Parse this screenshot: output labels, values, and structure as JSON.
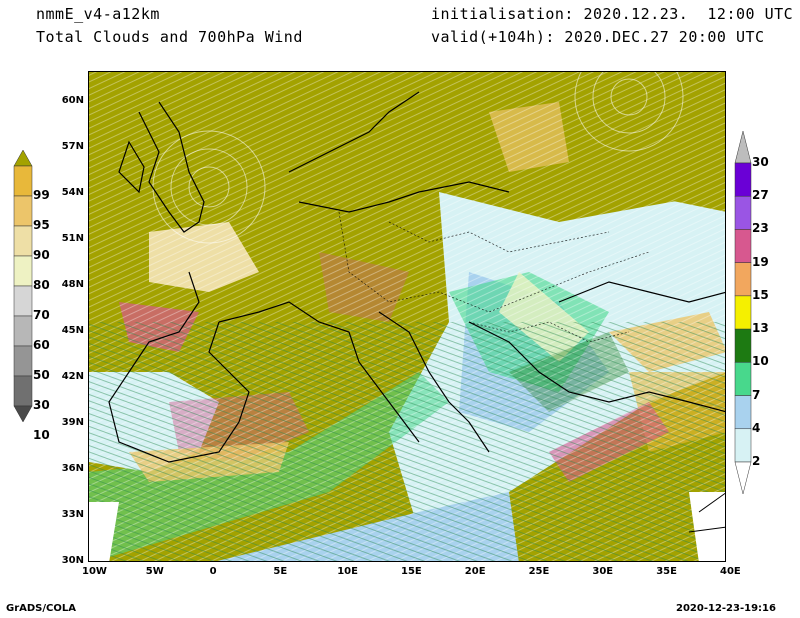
{
  "header": {
    "model": "nmmE_v4-a12km",
    "field": "Total Clouds and 700hPa Wind",
    "init": "initialisation: 2020.12.23.  12:00 UTC",
    "valid": "valid(+104h): 2020.DEC.27 20:00 UTC"
  },
  "axes": {
    "lat_labels": [
      "60N",
      "57N",
      "54N",
      "51N",
      "48N",
      "45N",
      "42N",
      "39N",
      "36N",
      "33N",
      "30N"
    ],
    "lon_labels": [
      "10W",
      "5W",
      "0",
      "5E",
      "10E",
      "15E",
      "20E",
      "25E",
      "30E",
      "35E",
      "40E"
    ]
  },
  "legend_clouds": {
    "labels": [
      "99",
      "95",
      "90",
      "80",
      "70",
      "60",
      "50",
      "30",
      "10"
    ],
    "colors": [
      "#a3a200",
      "#e8b83a",
      "#ecc56a",
      "#eedfa6",
      "#eef2c3",
      "#d6d6d6",
      "#b7b7b7",
      "#959595",
      "#707070",
      "#4a4a4a"
    ]
  },
  "legend_wind": {
    "labels": [
      "30",
      "27",
      "23",
      "19",
      "15",
      "13",
      "10",
      "7",
      "4",
      "2"
    ],
    "colors": [
      "#6a00d6",
      "#9a55e4",
      "#d7588f",
      "#f2a75e",
      "#f5f000",
      "#1d7a12",
      "#48d88c",
      "#a9d2ee",
      "#d7f2f4"
    ]
  },
  "footer": {
    "left": "GrADS/COLA",
    "right": "2020-12-23-19:16"
  }
}
